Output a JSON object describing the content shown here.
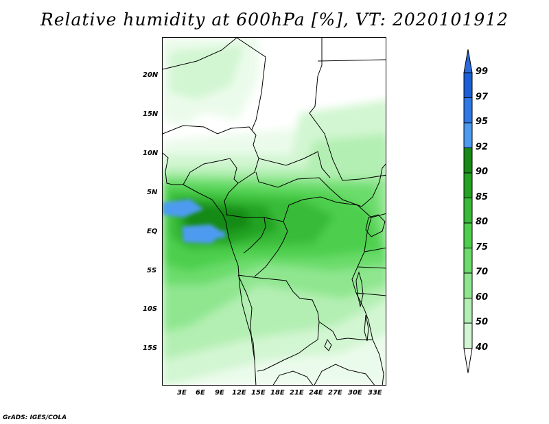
{
  "title": "Relative humidity at 600hPa [%], VT: 2020101912",
  "footer": "GrADS: IGES/COLA",
  "axes": {
    "lat_labels": [
      "20N",
      "15N",
      "10N",
      "5N",
      "EQ",
      "5S",
      "10S",
      "15S"
    ],
    "lon_labels": [
      "3E",
      "6E",
      "9E",
      "12E",
      "15E",
      "18E",
      "21E",
      "24E",
      "27E",
      "30E",
      "33E"
    ]
  },
  "colorbar": {
    "levels": [
      "99",
      "97",
      "95",
      "92",
      "90",
      "85",
      "80",
      "75",
      "70",
      "60",
      "50",
      "40"
    ],
    "colors": [
      "#1a5fd6",
      "#2f78e6",
      "#4d9bf0",
      "#168a16",
      "#22a322",
      "#38bb38",
      "#4dcf4d",
      "#6bdc6b",
      "#8fe68f",
      "#b3efb3",
      "#d2f6d2",
      "#ebfbeb",
      "#ffffff",
      "#2b6ad8"
    ]
  }
}
